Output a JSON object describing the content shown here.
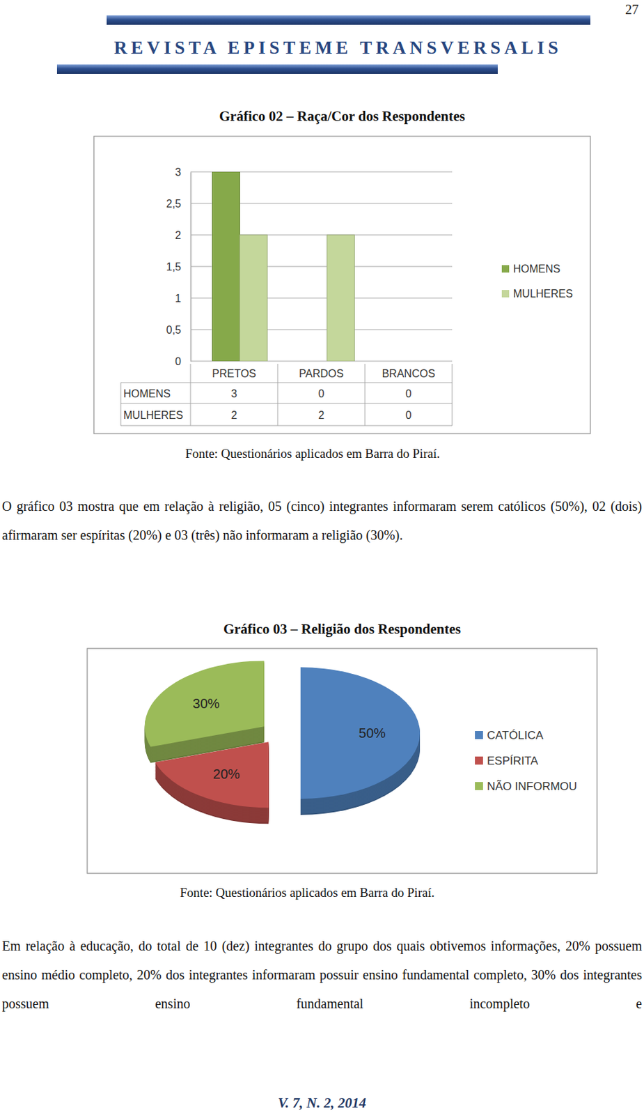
{
  "header": {
    "page_number": "27",
    "journal": "REVISTA EPISTEME TRANSVERSALIS"
  },
  "chart_data": [
    {
      "type": "bar",
      "title": "Gráfico 02 – Raça/Cor dos Respondentes",
      "categories": [
        "PRETOS",
        "PARDOS",
        "BRANCOS"
      ],
      "series": [
        {
          "name": "HOMENS",
          "color": "#86a94a",
          "values": [
            3,
            0,
            0
          ]
        },
        {
          "name": "MULHERES",
          "color": "#c4d79b",
          "values": [
            2,
            2,
            0
          ]
        }
      ],
      "ylim": [
        0,
        3
      ],
      "yticks": [
        0,
        {
          "value": 0.5,
          "label": "0,5"
        },
        1,
        {
          "value": 1.5,
          "label": "1,5"
        },
        2,
        {
          "value": 2.5,
          "label": "2,5"
        },
        3
      ],
      "grid": true,
      "legend": "right",
      "source": "Fonte: Questionários aplicados em Barra do Piraí."
    },
    {
      "type": "pie",
      "title": "Gráfico 03 – Religião dos Respondentes",
      "categories": [
        "CATÓLICA",
        "ESPÍRITA",
        "NÃO INFORMOU"
      ],
      "values": [
        50,
        20,
        30
      ],
      "value_labels": [
        "50%",
        "20%",
        "30%"
      ],
      "colors": [
        "#4f81bd",
        "#c0504d",
        "#9bbb59"
      ],
      "data_labels": true,
      "legend": "right",
      "source": "Fonte: Questionários aplicados em Barra do Piraí."
    }
  ],
  "paragraphs": [
    "O gráfico 03 mostra que em relação à religião, 05 (cinco) integrantes informaram serem católicos (50%), 02 (dois) afirmaram ser espíritas (20%) e 03 (três) não informaram a religião (30%).",
    "Em relação à educação, do total de 10 (dez) integrantes do grupo dos quais obtivemos informações, 20% possuem ensino médio completo, 20% dos integrantes informaram possuir ensino fundamental completo, 30% dos integrantes possuem ensino fundamental incompleto e"
  ],
  "footer": "V. 7, N. 2, 2014"
}
